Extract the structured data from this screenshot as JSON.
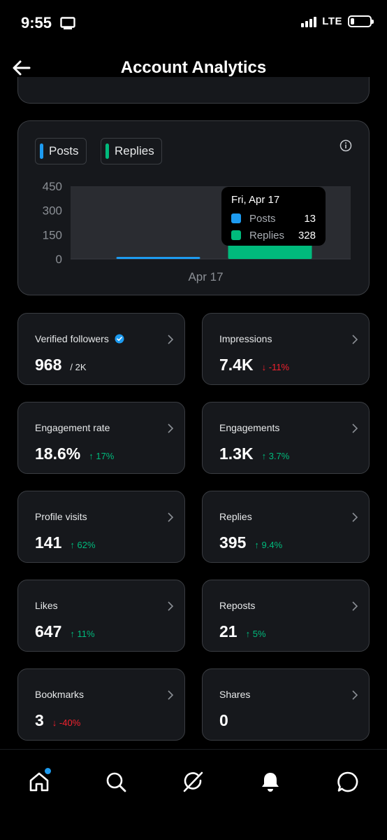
{
  "status_bar": {
    "time": "9:55",
    "network": "LTE"
  },
  "header": {
    "title": "Account Analytics"
  },
  "chart_data": {
    "type": "bar",
    "categories": [
      "Apr 17"
    ],
    "series": [
      {
        "name": "Posts",
        "values": [
          13
        ],
        "color": "#1d9bf0"
      },
      {
        "name": "Replies",
        "values": [
          328
        ],
        "color": "#00ba7c"
      }
    ],
    "ylim": [
      0,
      450
    ],
    "yticks": [
      "450",
      "300",
      "150",
      "0"
    ],
    "ytick_values": [
      450,
      300,
      150,
      0
    ],
    "tooltip": {
      "date": "Fri, Apr 17"
    }
  },
  "legend": {
    "posts": "Posts",
    "replies": "Replies"
  },
  "colors": {
    "posts": "#1d9bf0",
    "replies": "#00ba7c",
    "up": "#00ba7c",
    "down": "#f4212e",
    "verified": "#1d9bf0"
  },
  "stats": [
    {
      "label": "Verified followers",
      "value": "968",
      "sub": "/ 2K",
      "change": "",
      "dir": ""
    },
    {
      "label": "Impressions",
      "value": "7.4K",
      "sub": "",
      "change": "-11%",
      "dir": "down"
    },
    {
      "label": "Engagement rate",
      "value": "18.6%",
      "sub": "",
      "change": "17%",
      "dir": "up"
    },
    {
      "label": "Engagements",
      "value": "1.3K",
      "sub": "",
      "change": "3.7%",
      "dir": "up"
    },
    {
      "label": "Profile visits",
      "value": "141",
      "sub": "",
      "change": "62%",
      "dir": "up"
    },
    {
      "label": "Replies",
      "value": "395",
      "sub": "",
      "change": "9.4%",
      "dir": "up"
    },
    {
      "label": "Likes",
      "value": "647",
      "sub": "",
      "change": "11%",
      "dir": "up"
    },
    {
      "label": "Reposts",
      "value": "21",
      "sub": "",
      "change": "5%",
      "dir": "up"
    },
    {
      "label": "Bookmarks",
      "value": "3",
      "sub": "",
      "change": "-40%",
      "dir": "down"
    },
    {
      "label": "Shares",
      "value": "0",
      "sub": "",
      "change": "",
      "dir": ""
    }
  ],
  "nav": [
    "home-icon",
    "search-icon",
    "grok-icon",
    "notifications-icon",
    "messages-icon"
  ]
}
